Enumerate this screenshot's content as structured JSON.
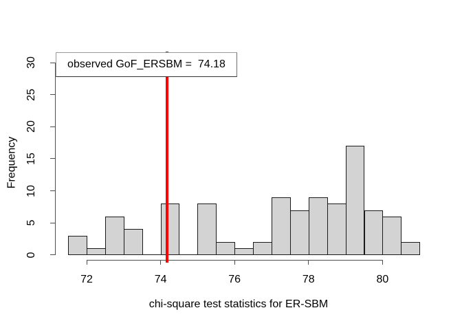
{
  "figure": {
    "background": "#ffffff",
    "legend_text": "observed GoF_ERSBM =  74.18"
  },
  "chart_data": {
    "type": "bar",
    "subtype": "histogram",
    "title": "",
    "xlabel": "chi-square test statistics for ER-SBM",
    "ylabel": "Frequency",
    "bin_start": 71.5,
    "bin_width": 0.5,
    "bin_edges": [
      71.5,
      72,
      72.5,
      73,
      73.5,
      74,
      74.5,
      75,
      75.5,
      76,
      76.5,
      77,
      77.5,
      78,
      78.5,
      79,
      79.5,
      80,
      80.5,
      81
    ],
    "counts": [
      3,
      1,
      6,
      4,
      0,
      8,
      0,
      8,
      2,
      1,
      2,
      9,
      7,
      9,
      8,
      17,
      7,
      6,
      2
    ],
    "total_count": 100,
    "x_ticks": [
      72,
      74,
      76,
      78,
      80
    ],
    "y_ticks": [
      0,
      5,
      10,
      15,
      20,
      25,
      30
    ],
    "xlim": [
      71.5,
      81
    ],
    "ylim": [
      0,
      30
    ],
    "grid": false,
    "legend_position": "top-left",
    "vline": {
      "x": 74.18,
      "color": "#ff0000",
      "label": "observed GoF_ERSBM =  74.18"
    },
    "colors": {
      "bar_fill": "#d3d3d3",
      "bar_border": "#1a1a1a",
      "axis": "#4d4d4d",
      "text": "#000000"
    }
  }
}
